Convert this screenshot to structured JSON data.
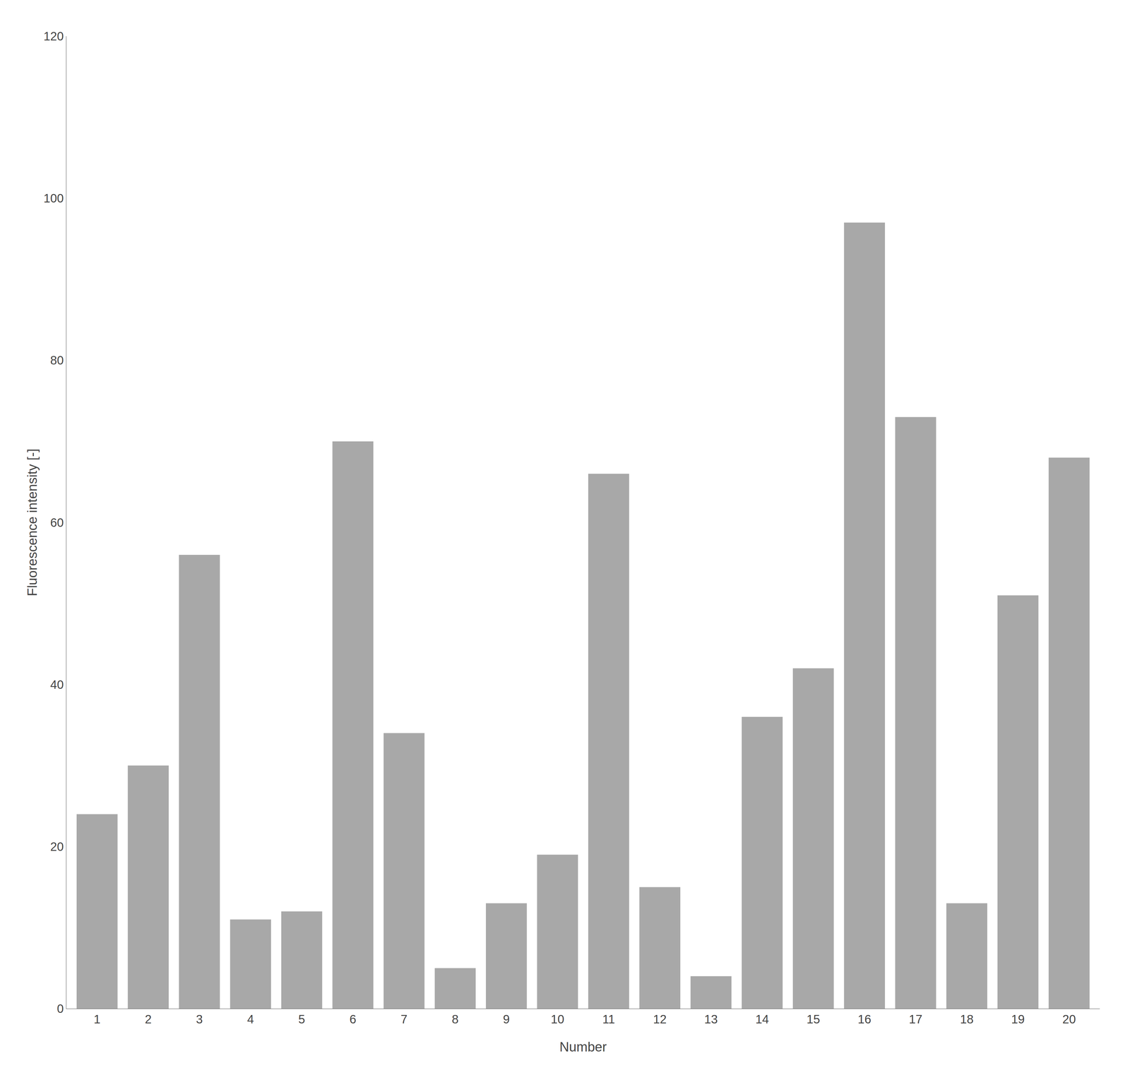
{
  "chart_data": {
    "type": "bar",
    "categories": [
      "1",
      "2",
      "3",
      "4",
      "5",
      "6",
      "7",
      "8",
      "9",
      "10",
      "11",
      "12",
      "13",
      "14",
      "15",
      "16",
      "17",
      "18",
      "19",
      "20"
    ],
    "values": [
      24,
      30,
      56,
      11,
      12,
      70,
      34,
      5,
      13,
      19,
      66,
      15,
      4,
      36,
      42,
      97,
      73,
      13,
      51,
      68
    ],
    "color": "#a8a8a8",
    "xlabel": "Number",
    "ylabel": "Fluorescence intensity [-]",
    "ylim": [
      0,
      120
    ],
    "yticks": [
      0,
      20,
      40,
      60,
      80,
      100,
      120
    ],
    "grid": false
  }
}
